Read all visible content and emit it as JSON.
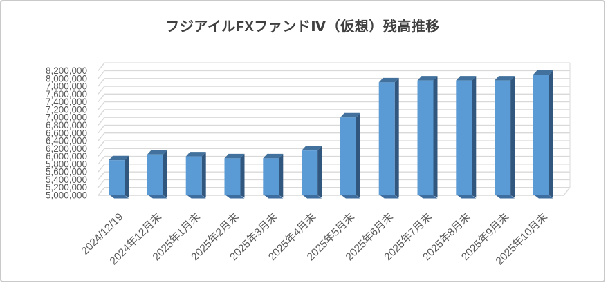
{
  "window": {
    "background": "#FFFFFF",
    "border_color": "#C9C9C9"
  },
  "chart_data": {
    "type": "bar",
    "projection": "3d-oblique",
    "title": "フジアイルFXファンドⅣ（仮想）残高推移",
    "xlabel": "",
    "ylabel": "",
    "legend": "none",
    "grid": true,
    "categories": [
      "2024/12/19",
      "2024年12月末",
      "2025年1月末",
      "2025年2月末",
      "2025年3月末",
      "2025年4月末",
      "2025年5月末",
      "2025年6月末",
      "2025年7月末",
      "2025年8月末",
      "2025年9月末",
      "2025年10月末"
    ],
    "values": [
      5900000,
      6050000,
      6000000,
      5950000,
      5950000,
      6150000,
      7000000,
      7900000,
      7950000,
      7950000,
      7950000,
      8100000
    ],
    "ylim": [
      5000000,
      8200000
    ],
    "y_tick_step": 200000,
    "y_tick_labels": [
      "8,200,000",
      "8,000,000",
      "7,800,000",
      "7,600,000",
      "7,400,000",
      "7,200,000",
      "7,000,000",
      "6,800,000",
      "6,600,000",
      "6,400,000",
      "6,200,000",
      "6,000,000",
      "5,800,000",
      "5,600,000",
      "5,400,000",
      "5,200,000",
      "5,000,000"
    ],
    "x_tick_rotation_deg": 45,
    "colors": {
      "bar_front": "#5B9BD5",
      "bar_top": "#41719C",
      "bar_side": "#31577F",
      "bar_bottom_shadow": "#3E6DA0",
      "gridline": "#D9D9D9",
      "wall_edge": "#E0E0E0",
      "tick_label": "#595959",
      "title": "#404040"
    }
  }
}
